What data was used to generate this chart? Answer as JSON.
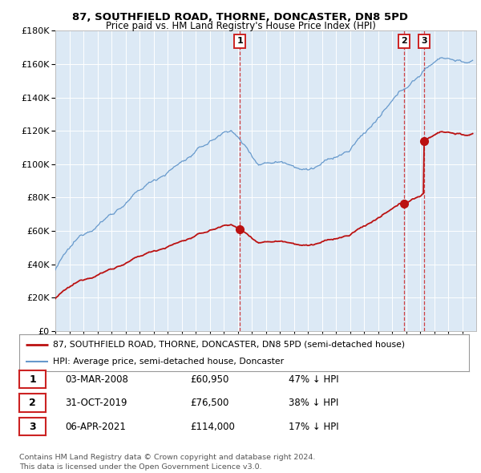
{
  "title": "87, SOUTHFIELD ROAD, THORNE, DONCASTER, DN8 5PD",
  "subtitle": "Price paid vs. HM Land Registry's House Price Index (HPI)",
  "background_color": "#dce9f5",
  "plot_bg_color": "#dce9f5",
  "hpi_color": "#6699cc",
  "price_color": "#bb1111",
  "vline_color": "#cc2222",
  "purchases": [
    {
      "label": "1",
      "date": "2008-03-03",
      "price": 60950,
      "x": 2008.17
    },
    {
      "label": "2",
      "date": "2019-10-31",
      "price": 76500,
      "x": 2019.83
    },
    {
      "label": "3",
      "date": "2021-04-06",
      "price": 114000,
      "x": 2021.27
    }
  ],
  "table_rows": [
    {
      "num": "1",
      "date": "03-MAR-2008",
      "price": "£60,950",
      "pct": "47% ↓ HPI"
    },
    {
      "num": "2",
      "date": "31-OCT-2019",
      "price": "£76,500",
      "pct": "38% ↓ HPI"
    },
    {
      "num": "3",
      "date": "06-APR-2021",
      "price": "£114,000",
      "pct": "17% ↓ HPI"
    }
  ],
  "legend_entries": [
    "87, SOUTHFIELD ROAD, THORNE, DONCASTER, DN8 5PD (semi-detached house)",
    "HPI: Average price, semi-detached house, Doncaster"
  ],
  "footer": "Contains HM Land Registry data © Crown copyright and database right 2024.\nThis data is licensed under the Open Government Licence v3.0.",
  "ylim": [
    0,
    180000
  ],
  "yticks": [
    0,
    20000,
    40000,
    60000,
    80000,
    100000,
    120000,
    140000,
    160000,
    180000
  ],
  "xmin": 1995,
  "xmax": 2025
}
